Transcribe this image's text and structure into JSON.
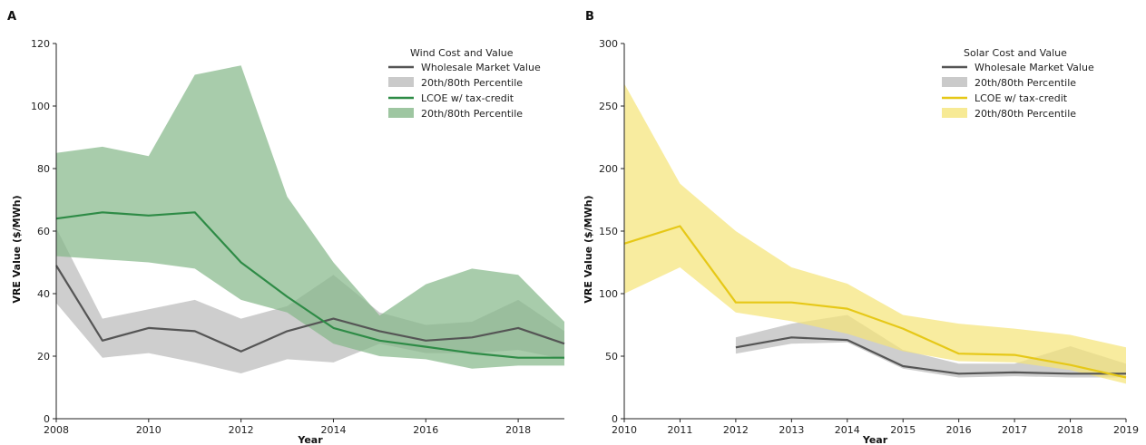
{
  "chart_data": [
    {
      "type": "line",
      "panel_letter": "A",
      "title": "",
      "xlabel": "Year",
      "ylabel": "VRE Value ($/MWh)",
      "xlim": [
        2008,
        2019
      ],
      "ylim": [
        0,
        120
      ],
      "xticks": [
        2008,
        2010,
        2012,
        2014,
        2016,
        2018
      ],
      "yticks": [
        0,
        20,
        40,
        60,
        80,
        100,
        120
      ],
      "grid": false,
      "legend": {
        "title": "Wind Cost and Value",
        "placement": "top-right",
        "entries": [
          {
            "label": "Wholesale Market Value",
            "kind": "line",
            "color": "#555555"
          },
          {
            "label": "20th/80th Percentile",
            "kind": "band",
            "color": "#bdbdbd"
          },
          {
            "label": "LCOE w/ tax-credit",
            "kind": "line",
            "color": "#2e8b46"
          },
          {
            "label": "20th/80th Percentile",
            "kind": "band",
            "color": "#86b88a"
          }
        ]
      },
      "x": [
        2008,
        2009,
        2010,
        2011,
        2012,
        2013,
        2014,
        2015,
        2016,
        2017,
        2018,
        2019
      ],
      "series": [
        {
          "name": "Wholesale Market Value",
          "kind": "line",
          "color": "#555555",
          "values": [
            49,
            25,
            29,
            28,
            21.5,
            28,
            32,
            28,
            25,
            26,
            29,
            24
          ]
        },
        {
          "name": "20th/80th Percentile",
          "kind": "band",
          "color": "#bdbdbd",
          "lower": [
            37,
            19.5,
            21,
            18,
            14.5,
            19,
            18,
            24,
            21,
            21,
            22,
            19
          ],
          "upper": [
            61,
            32,
            35,
            38,
            32,
            36,
            46,
            34,
            30,
            31,
            38,
            28
          ]
        },
        {
          "name": "LCOE w/ tax-credit",
          "kind": "line",
          "color": "#2e8b46",
          "values": [
            64,
            66,
            65,
            66,
            50,
            39,
            29,
            25,
            23,
            21,
            19.5,
            19.5
          ]
        },
        {
          "name": "20th/80th Percentile",
          "kind": "band",
          "color": "#86b88a",
          "lower": [
            52,
            51,
            50,
            48,
            38,
            34,
            24,
            20,
            19,
            16,
            17,
            17
          ],
          "upper": [
            85,
            87,
            84,
            110,
            113,
            71,
            50,
            33,
            43,
            48,
            46,
            31
          ]
        }
      ]
    },
    {
      "type": "line",
      "panel_letter": "B",
      "title": "",
      "xlabel": "Year",
      "ylabel": "VRE Value ($/MWh)",
      "xlim": [
        2010,
        2019
      ],
      "ylim": [
        0,
        300
      ],
      "xticks": [
        2010,
        2011,
        2012,
        2013,
        2014,
        2015,
        2016,
        2017,
        2018,
        2019
      ],
      "yticks": [
        0,
        50,
        100,
        150,
        200,
        250,
        300
      ],
      "grid": false,
      "legend": {
        "title": "Solar Cost and Value",
        "placement": "top-right",
        "entries": [
          {
            "label": "Wholesale Market Value",
            "kind": "line",
            "color": "#555555"
          },
          {
            "label": "20th/80th Percentile",
            "kind": "band",
            "color": "#bdbdbd"
          },
          {
            "label": "LCOE w/ tax-credit",
            "kind": "line",
            "color": "#e6c817"
          },
          {
            "label": "20th/80th Percentile",
            "kind": "band",
            "color": "#f5e57a"
          }
        ]
      },
      "x": [
        2010,
        2011,
        2012,
        2013,
        2014,
        2015,
        2016,
        2017,
        2018,
        2019
      ],
      "series": [
        {
          "name": "Wholesale Market Value",
          "kind": "line",
          "color": "#555555",
          "values": [
            null,
            null,
            57,
            65,
            63,
            42,
            36,
            37,
            36,
            36
          ]
        },
        {
          "name": "20th/80th Percentile",
          "kind": "band",
          "color": "#bdbdbd",
          "lower": [
            null,
            null,
            52,
            60,
            61,
            40,
            33,
            34,
            33,
            33
          ],
          "upper": [
            null,
            null,
            65,
            76,
            83,
            55,
            44,
            44,
            58,
            44
          ]
        },
        {
          "name": "LCOE w/ tax-credit",
          "kind": "line",
          "color": "#e6c817",
          "values": [
            140,
            154,
            93,
            93,
            88,
            72,
            52,
            51,
            43,
            33
          ]
        },
        {
          "name": "20th/80th Percentile",
          "kind": "band",
          "color": "#f5e57a",
          "lower": [
            100,
            121,
            85,
            78,
            68,
            54,
            46,
            45,
            39,
            28
          ],
          "upper": [
            268,
            188,
            150,
            121,
            108,
            83,
            76,
            72,
            67,
            57
          ]
        }
      ]
    }
  ]
}
